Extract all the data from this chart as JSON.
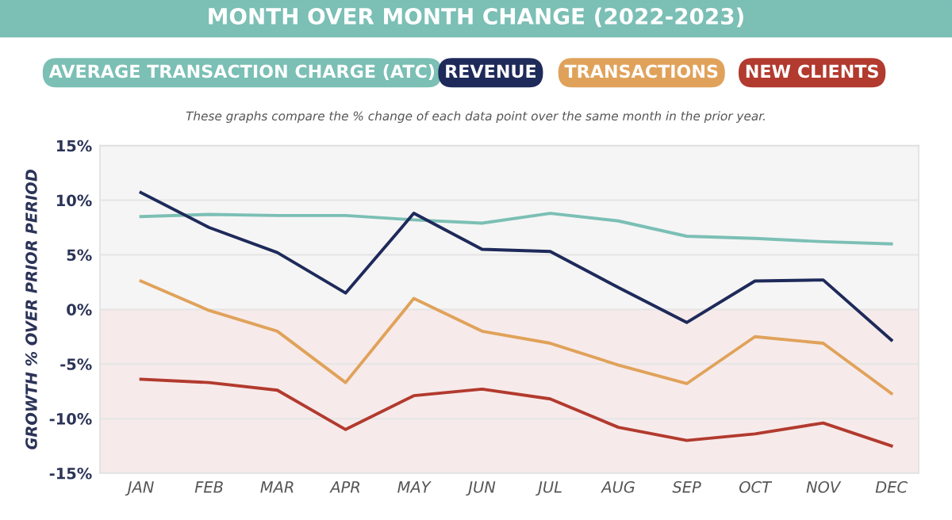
{
  "chart_data": {
    "type": "line",
    "title": "MONTH OVER MONTH CHANGE (2022-2023)",
    "subtitle": "These graphs compare the % change of each data point over the same month in the prior year.",
    "ylabel": "GROWTH % OVER PRIOR PERIOD",
    "categories": [
      "JAN",
      "FEB",
      "MAR",
      "APR",
      "MAY",
      "JUN",
      "JUL",
      "AUG",
      "SEP",
      "OCT",
      "NOV",
      "DEC"
    ],
    "series": [
      {
        "name": "AVERAGE TRANSACTION CHARGE (ATC)",
        "color": "#7bbfb5",
        "values": [
          8.5,
          8.7,
          8.6,
          8.6,
          8.2,
          7.9,
          8.8,
          8.1,
          6.7,
          6.5,
          6.2,
          6.0
        ]
      },
      {
        "name": "REVENUE",
        "color": "#1e2a5a",
        "values": [
          10.7,
          7.5,
          5.2,
          1.5,
          8.8,
          5.5,
          5.3,
          2.0,
          -1.2,
          2.6,
          2.7,
          -2.8
        ]
      },
      {
        "name": "TRANSACTIONS",
        "color": "#e0a25a",
        "values": [
          2.6,
          -0.1,
          -2.0,
          -6.7,
          1.0,
          -2.0,
          -3.1,
          -5.1,
          -6.8,
          -2.5,
          -3.1,
          -7.7
        ]
      },
      {
        "name": "NEW CLIENTS",
        "color": "#b23a2e",
        "values": [
          -6.4,
          -6.7,
          -7.4,
          -11.0,
          -7.9,
          -7.3,
          -8.2,
          -10.8,
          -12.0,
          -11.4,
          -10.4,
          -12.5
        ]
      }
    ],
    "ylim": [
      -15,
      15
    ],
    "yticks": [
      {
        "value": -15,
        "label": "-15%"
      },
      {
        "value": -10,
        "label": "-10%"
      },
      {
        "value": -5,
        "label": "-5%"
      },
      {
        "value": 0,
        "label": "0%"
      },
      {
        "value": 5,
        "label": "5%"
      },
      {
        "value": 10,
        "label": "10%"
      },
      {
        "value": 15,
        "label": "15%"
      }
    ],
    "bands": [
      {
        "axis": "y",
        "from": 0,
        "to": 15,
        "color": "#f5f5f5"
      },
      {
        "axis": "y",
        "from": -15,
        "to": 0,
        "color": "#f7eaea"
      }
    ],
    "grid": "y",
    "legend": "top",
    "marker": "none",
    "line_style": "solid"
  }
}
